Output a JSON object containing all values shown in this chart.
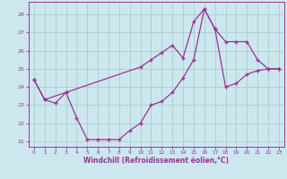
{
  "xlabel": "Windchill (Refroidissement éolien,°C)",
  "background_color": "#cce8ee",
  "grid_color": "#aacccc",
  "line_color": "#993399",
  "xlim": [
    -0.5,
    23.5
  ],
  "ylim": [
    20.7,
    28.7
  ],
  "yticks": [
    21,
    22,
    23,
    24,
    25,
    26,
    27,
    28
  ],
  "xticks": [
    0,
    1,
    2,
    3,
    4,
    5,
    6,
    7,
    8,
    9,
    10,
    11,
    12,
    13,
    14,
    15,
    16,
    17,
    18,
    19,
    20,
    21,
    22,
    23
  ],
  "line1_x": [
    0,
    1,
    3,
    10,
    11,
    12,
    13,
    14,
    15,
    16,
    17,
    18,
    19,
    20,
    21,
    22,
    23
  ],
  "line1_y": [
    24.4,
    23.3,
    23.7,
    25.1,
    25.5,
    25.9,
    26.3,
    25.6,
    27.6,
    28.3,
    27.2,
    26.5,
    26.5,
    26.5,
    25.5,
    25.0,
    25.0
  ],
  "line2_x": [
    0,
    1,
    2,
    3,
    4,
    5,
    6,
    7,
    8,
    9,
    10,
    11,
    12,
    13,
    14,
    15,
    16,
    17,
    18,
    19,
    20,
    21,
    22,
    23
  ],
  "line2_y": [
    24.4,
    23.3,
    23.1,
    23.7,
    22.3,
    21.1,
    21.1,
    21.1,
    21.1,
    21.6,
    22.0,
    23.0,
    23.2,
    23.7,
    24.5,
    25.5,
    28.3,
    27.2,
    24.0,
    24.2,
    24.7,
    24.9,
    25.0,
    25.0
  ]
}
